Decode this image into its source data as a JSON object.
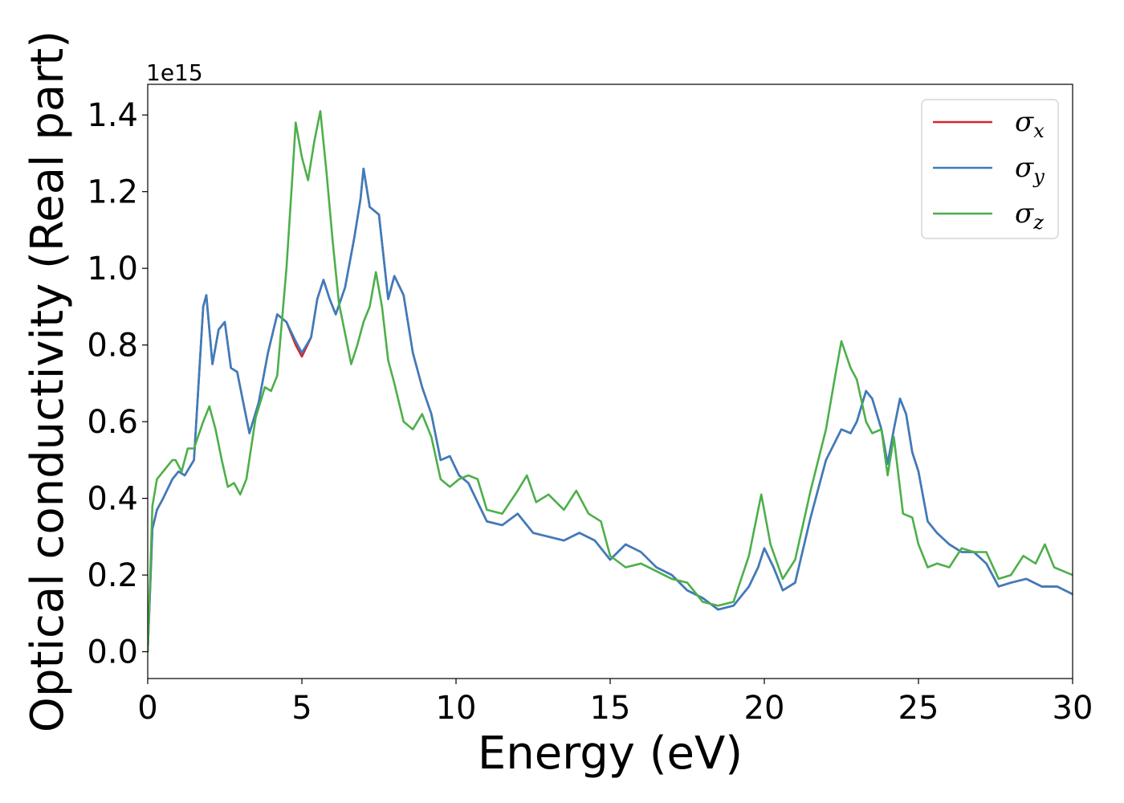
{
  "chart_data": {
    "type": "line",
    "title": "",
    "xlabel": "Energy (eV)",
    "ylabel": "Optical conductivity (Real part)",
    "y_offset_label": "1e15",
    "xlim": [
      0,
      30
    ],
    "ylim": [
      -0.07,
      1.48
    ],
    "x_ticks": [
      0,
      5,
      10,
      15,
      20,
      25,
      30
    ],
    "y_ticks": [
      0.0,
      0.2,
      0.4,
      0.6,
      0.8,
      1.0,
      1.2,
      1.4
    ],
    "x_tick_labels": [
      "0",
      "5",
      "10",
      "15",
      "20",
      "25",
      "30"
    ],
    "y_tick_labels": [
      "0.0",
      "0.2",
      "0.4",
      "0.6",
      "0.8",
      "1.0",
      "1.2",
      "1.4"
    ],
    "grid": false,
    "legend_position": "top-right",
    "series": [
      {
        "name": "σx",
        "symbol": "σ",
        "subscript": "x",
        "color": "#d62728",
        "x": [
          0,
          0.15,
          0.3,
          0.5,
          0.8,
          1.0,
          1.2,
          1.5,
          1.8,
          1.9,
          2.1,
          2.3,
          2.5,
          2.7,
          2.9,
          3.1,
          3.3,
          3.6,
          3.9,
          4.2,
          4.5,
          4.8,
          5.0,
          5.3,
          5.5,
          5.7,
          5.9,
          6.1,
          6.4,
          6.7,
          6.9,
          7.0,
          7.2,
          7.5,
          7.8,
          8.0,
          8.3,
          8.6,
          8.9,
          9.2,
          9.5,
          9.8,
          10.1,
          10.4,
          10.7,
          11.0,
          11.5,
          12.0,
          12.5,
          13.0,
          13.5,
          14.0,
          14.5,
          15.0,
          15.5,
          16.0,
          16.5,
          17.0,
          17.5,
          18.0,
          18.5,
          19.0,
          19.5,
          19.8,
          20.0,
          20.3,
          20.6,
          21.0,
          21.5,
          22.0,
          22.5,
          22.8,
          23.0,
          23.3,
          23.5,
          23.8,
          24.0,
          24.2,
          24.4,
          24.6,
          24.8,
          25.0,
          25.3,
          25.6,
          26.0,
          26.4,
          26.8,
          27.2,
          27.6,
          28.0,
          28.5,
          29.0,
          29.5,
          30.0
        ],
        "y": [
          0.0,
          0.32,
          0.37,
          0.4,
          0.45,
          0.47,
          0.46,
          0.5,
          0.9,
          0.93,
          0.75,
          0.84,
          0.86,
          0.74,
          0.73,
          0.65,
          0.57,
          0.65,
          0.78,
          0.88,
          0.86,
          0.8,
          0.77,
          0.82,
          0.92,
          0.97,
          0.92,
          0.88,
          0.95,
          1.08,
          1.18,
          1.26,
          1.16,
          1.14,
          0.92,
          0.98,
          0.93,
          0.78,
          0.69,
          0.62,
          0.5,
          0.51,
          0.46,
          0.44,
          0.39,
          0.34,
          0.33,
          0.36,
          0.31,
          0.3,
          0.29,
          0.31,
          0.29,
          0.24,
          0.28,
          0.26,
          0.22,
          0.2,
          0.16,
          0.14,
          0.11,
          0.12,
          0.17,
          0.22,
          0.27,
          0.22,
          0.16,
          0.18,
          0.35,
          0.5,
          0.58,
          0.57,
          0.6,
          0.68,
          0.66,
          0.58,
          0.49,
          0.58,
          0.66,
          0.62,
          0.52,
          0.47,
          0.34,
          0.31,
          0.28,
          0.26,
          0.26,
          0.23,
          0.17,
          0.18,
          0.19,
          0.17,
          0.17,
          0.15
        ]
      },
      {
        "name": "σy",
        "symbol": "σ",
        "subscript": "y",
        "color": "#3a7dbf",
        "x": [
          0,
          0.15,
          0.3,
          0.5,
          0.8,
          1.0,
          1.2,
          1.5,
          1.8,
          1.9,
          2.1,
          2.3,
          2.5,
          2.7,
          2.9,
          3.1,
          3.3,
          3.6,
          3.9,
          4.2,
          4.5,
          4.8,
          5.0,
          5.3,
          5.5,
          5.7,
          5.9,
          6.1,
          6.4,
          6.7,
          6.9,
          7.0,
          7.2,
          7.5,
          7.8,
          8.0,
          8.3,
          8.6,
          8.9,
          9.2,
          9.5,
          9.8,
          10.1,
          10.4,
          10.7,
          11.0,
          11.5,
          12.0,
          12.5,
          13.0,
          13.5,
          14.0,
          14.5,
          15.0,
          15.5,
          16.0,
          16.5,
          17.0,
          17.5,
          18.0,
          18.5,
          19.0,
          19.5,
          19.8,
          20.0,
          20.3,
          20.6,
          21.0,
          21.5,
          22.0,
          22.5,
          22.8,
          23.0,
          23.3,
          23.5,
          23.8,
          24.0,
          24.2,
          24.4,
          24.6,
          24.8,
          25.0,
          25.3,
          25.6,
          26.0,
          26.4,
          26.8,
          27.2,
          27.6,
          28.0,
          28.5,
          29.0,
          29.5,
          30.0
        ],
        "y": [
          0.0,
          0.32,
          0.37,
          0.4,
          0.45,
          0.47,
          0.46,
          0.5,
          0.9,
          0.93,
          0.75,
          0.84,
          0.86,
          0.74,
          0.73,
          0.65,
          0.57,
          0.65,
          0.78,
          0.88,
          0.86,
          0.81,
          0.78,
          0.82,
          0.92,
          0.97,
          0.92,
          0.88,
          0.95,
          1.08,
          1.18,
          1.26,
          1.16,
          1.14,
          0.92,
          0.98,
          0.93,
          0.78,
          0.69,
          0.62,
          0.5,
          0.51,
          0.46,
          0.44,
          0.39,
          0.34,
          0.33,
          0.36,
          0.31,
          0.3,
          0.29,
          0.31,
          0.29,
          0.24,
          0.28,
          0.26,
          0.22,
          0.2,
          0.16,
          0.14,
          0.11,
          0.12,
          0.17,
          0.22,
          0.27,
          0.22,
          0.16,
          0.18,
          0.35,
          0.5,
          0.58,
          0.57,
          0.6,
          0.68,
          0.66,
          0.58,
          0.49,
          0.58,
          0.66,
          0.62,
          0.52,
          0.47,
          0.34,
          0.31,
          0.28,
          0.26,
          0.26,
          0.23,
          0.17,
          0.18,
          0.19,
          0.17,
          0.17,
          0.15
        ]
      },
      {
        "name": "σz",
        "symbol": "σ",
        "subscript": "z",
        "color": "#4daf4a",
        "x": [
          0,
          0.15,
          0.3,
          0.5,
          0.8,
          0.9,
          1.1,
          1.3,
          1.5,
          1.8,
          2.0,
          2.2,
          2.4,
          2.6,
          2.8,
          3.0,
          3.2,
          3.5,
          3.8,
          4.0,
          4.2,
          4.5,
          4.7,
          4.8,
          5.0,
          5.2,
          5.4,
          5.6,
          5.8,
          6.0,
          6.2,
          6.4,
          6.6,
          6.8,
          7.0,
          7.2,
          7.4,
          7.6,
          7.8,
          8.0,
          8.3,
          8.6,
          8.9,
          9.2,
          9.5,
          9.8,
          10.1,
          10.4,
          10.7,
          11.0,
          11.5,
          12.0,
          12.3,
          12.6,
          13.0,
          13.5,
          13.9,
          14.3,
          14.7,
          15.0,
          15.5,
          16.0,
          16.5,
          17.0,
          17.5,
          18.0,
          18.5,
          19.0,
          19.5,
          19.9,
          20.2,
          20.6,
          21.0,
          21.5,
          22.0,
          22.3,
          22.5,
          22.8,
          23.0,
          23.3,
          23.5,
          23.8,
          24.0,
          24.2,
          24.5,
          24.8,
          25.0,
          25.3,
          25.6,
          26.0,
          26.4,
          26.8,
          27.2,
          27.6,
          28.0,
          28.4,
          28.8,
          29.1,
          29.4,
          29.7,
          30.0
        ],
        "y": [
          0.0,
          0.38,
          0.45,
          0.47,
          0.5,
          0.5,
          0.47,
          0.53,
          0.53,
          0.6,
          0.64,
          0.58,
          0.5,
          0.43,
          0.44,
          0.41,
          0.45,
          0.61,
          0.69,
          0.68,
          0.72,
          1.0,
          1.25,
          1.38,
          1.29,
          1.23,
          1.33,
          1.41,
          1.25,
          1.07,
          0.91,
          0.83,
          0.75,
          0.8,
          0.86,
          0.9,
          0.99,
          0.9,
          0.76,
          0.7,
          0.6,
          0.58,
          0.62,
          0.56,
          0.45,
          0.43,
          0.45,
          0.46,
          0.45,
          0.37,
          0.36,
          0.42,
          0.46,
          0.39,
          0.41,
          0.37,
          0.42,
          0.36,
          0.34,
          0.25,
          0.22,
          0.23,
          0.21,
          0.19,
          0.18,
          0.13,
          0.12,
          0.13,
          0.25,
          0.41,
          0.28,
          0.19,
          0.24,
          0.42,
          0.58,
          0.72,
          0.81,
          0.74,
          0.71,
          0.6,
          0.57,
          0.58,
          0.46,
          0.56,
          0.36,
          0.35,
          0.28,
          0.22,
          0.23,
          0.22,
          0.27,
          0.26,
          0.26,
          0.19,
          0.2,
          0.25,
          0.23,
          0.28,
          0.22,
          0.21,
          0.2
        ]
      }
    ]
  }
}
